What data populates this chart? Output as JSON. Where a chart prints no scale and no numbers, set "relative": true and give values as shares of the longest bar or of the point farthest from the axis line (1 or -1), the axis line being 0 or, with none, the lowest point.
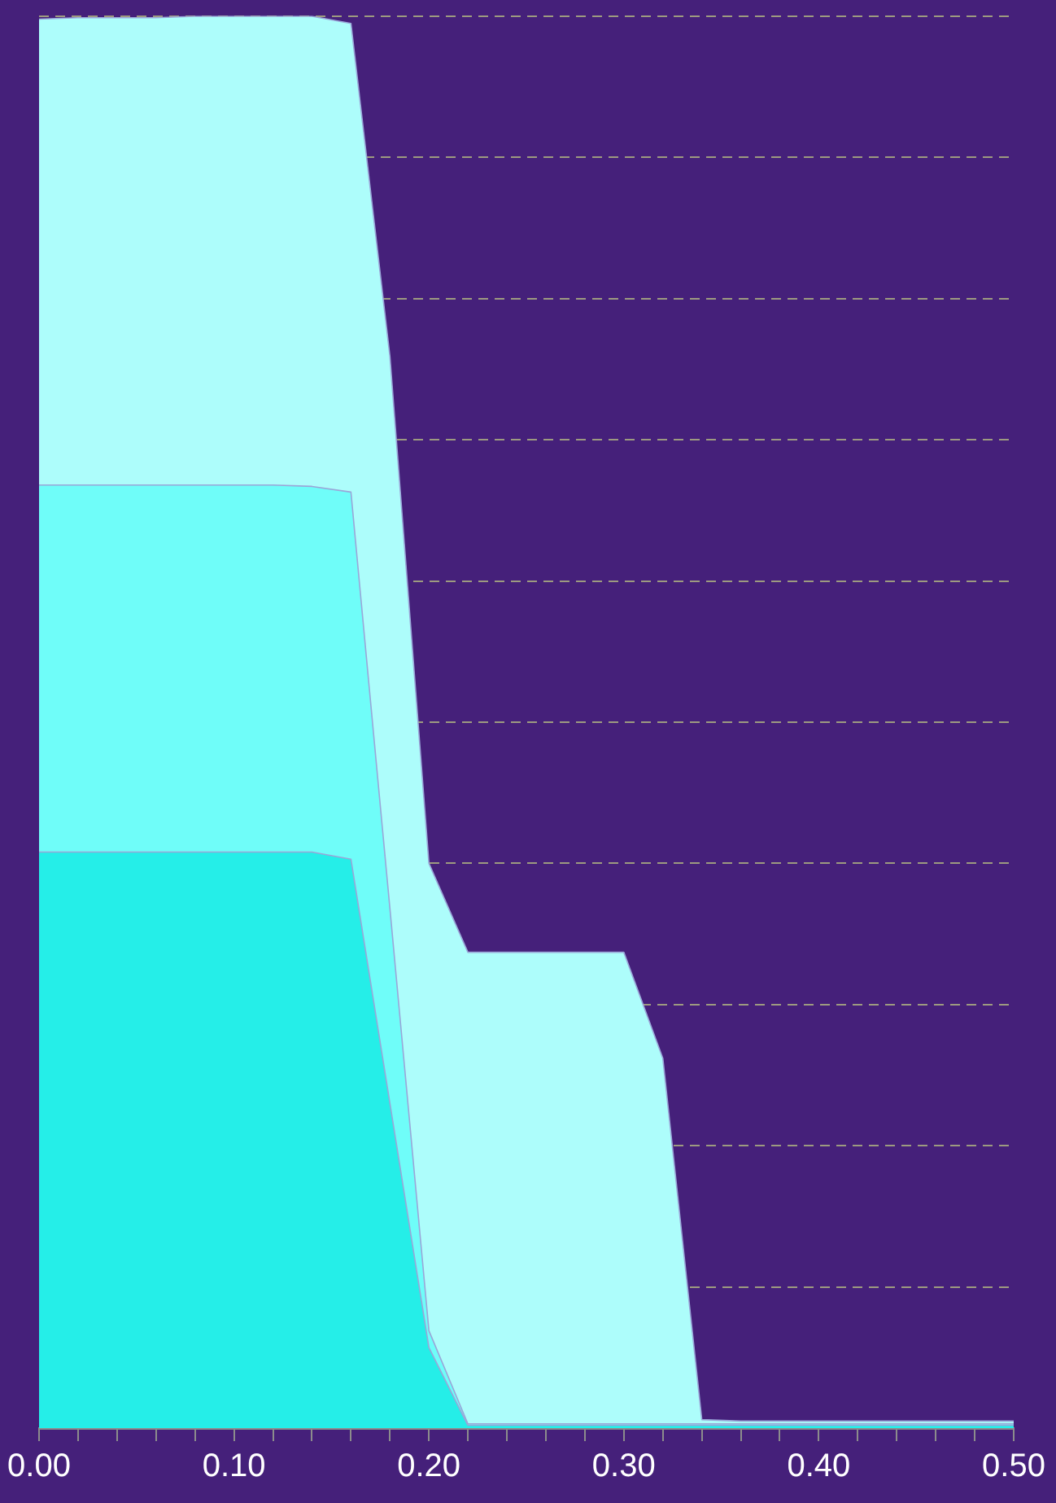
{
  "chart_data": {
    "type": "area",
    "relative": true,
    "grid": "y",
    "line_style": "solid",
    "x": [
      0,
      0.02,
      0.04,
      0.06,
      0.08,
      0.1,
      0.12,
      0.14,
      0.16,
      0.18,
      0.2,
      0.22,
      0.24,
      0.26,
      0.28,
      0.3,
      0.32,
      0.34,
      0.36,
      0.38,
      0.4,
      0.42,
      0.44,
      0.46,
      0.48,
      0.5
    ],
    "xlim": [
      0,
      0.5
    ],
    "xticks": [
      {
        "value": 0,
        "label": "0.00"
      },
      {
        "value": 0.02,
        "label": null
      },
      {
        "value": 0.04,
        "label": null
      },
      {
        "value": 0.06,
        "label": null
      },
      {
        "value": 0.08,
        "label": null
      },
      {
        "value": 0.1,
        "label": "0.10"
      },
      {
        "value": 0.12,
        "label": null
      },
      {
        "value": 0.14,
        "label": null
      },
      {
        "value": 0.16,
        "label": null
      },
      {
        "value": 0.18,
        "label": null
      },
      {
        "value": 0.2,
        "label": "0.20"
      },
      {
        "value": 0.22,
        "label": null
      },
      {
        "value": 0.24,
        "label": null
      },
      {
        "value": 0.26,
        "label": null
      },
      {
        "value": 0.28,
        "label": null
      },
      {
        "value": 0.3,
        "label": "0.30"
      },
      {
        "value": 0.32,
        "label": null
      },
      {
        "value": 0.34,
        "label": null
      },
      {
        "value": 0.36,
        "label": null
      },
      {
        "value": 0.38,
        "label": null
      },
      {
        "value": 0.4,
        "label": "0.40"
      },
      {
        "value": 0.42,
        "label": null
      },
      {
        "value": 0.44,
        "label": null
      },
      {
        "value": 0.46,
        "label": null
      },
      {
        "value": 0.48,
        "label": null
      },
      {
        "value": 0.5,
        "label": "0.50"
      }
    ],
    "series": [
      {
        "color": "#adfdfb",
        "values": [
          0.998,
          0.999,
          0.999,
          0.999,
          1,
          1,
          1,
          1,
          0.995,
          0.759,
          0.4,
          0.337,
          0.337,
          0.337,
          0.337,
          0.337,
          0.262,
          0.006,
          0.005,
          0.005,
          0.005,
          0.005,
          0.005,
          0.005,
          0.005,
          0.005
        ]
      },
      {
        "color": "#6ffdf9",
        "values": [
          0.668,
          0.668,
          0.668,
          0.668,
          0.668,
          0.668,
          0.668,
          0.667,
          0.663,
          0.368,
          0.069,
          0.003,
          0.003,
          0.003,
          0.003,
          0.003,
          0.003,
          0.003,
          0.003,
          0.003,
          0.003,
          0.003,
          0.003,
          0.003,
          0.003,
          0.003
        ]
      },
      {
        "color": "#25eee8",
        "values": [
          0.408,
          0.408,
          0.408,
          0.408,
          0.408,
          0.408,
          0.408,
          0.408,
          0.403,
          0.23,
          0.057,
          0.002,
          0.002,
          0.002,
          0.002,
          0.002,
          0.002,
          0.002,
          0.002,
          0.002,
          0.002,
          0.002,
          0.002,
          0.002,
          0.002,
          0.002
        ]
      }
    ]
  }
}
